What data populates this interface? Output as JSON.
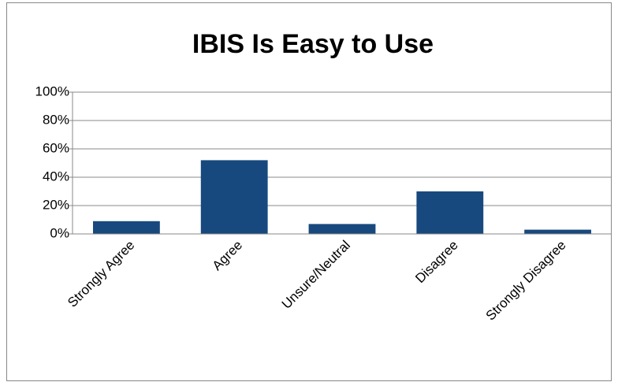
{
  "chart_data": {
    "type": "bar",
    "title": "IBIS Is Easy to Use",
    "categories": [
      "Strongly Agree",
      "Agree",
      "Unsure/Neutral",
      "Disagree",
      "Strongly Disagree"
    ],
    "values": [
      9,
      52,
      7,
      30,
      3
    ],
    "color": "#17497e",
    "ylim": [
      0,
      100
    ],
    "yticks": [
      {
        "value": 0,
        "label": "0%"
      },
      {
        "value": 20,
        "label": "20%"
      },
      {
        "value": 40,
        "label": "40%"
      },
      {
        "value": 60,
        "label": "60%"
      },
      {
        "value": 80,
        "label": "80%"
      },
      {
        "value": 100,
        "label": "100%"
      }
    ],
    "grid": true
  }
}
